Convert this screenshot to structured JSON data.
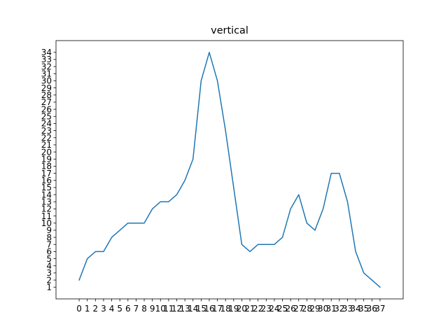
{
  "chart_data": {
    "type": "line",
    "title": "vertical",
    "xlabel": "",
    "ylabel": "",
    "x": [
      0,
      1,
      2,
      3,
      4,
      5,
      6,
      7,
      8,
      9,
      10,
      11,
      12,
      13,
      14,
      15,
      16,
      17,
      18,
      19,
      20,
      21,
      22,
      23,
      24,
      25,
      26,
      27,
      28,
      29,
      30,
      31,
      32,
      33,
      34,
      35,
      36,
      37
    ],
    "y": [
      2,
      5,
      6,
      6,
      8,
      9,
      10,
      10,
      10,
      12,
      13,
      13,
      14,
      16,
      19,
      30,
      34,
      30,
      23,
      15,
      7,
      6,
      7,
      7,
      7,
      8,
      12,
      14,
      10,
      9,
      12,
      17,
      17,
      13,
      6,
      3,
      2,
      1
    ],
    "xlim": [
      -2.85,
      39.85
    ],
    "ylim": [
      -0.65,
      35.65
    ],
    "xticks": [
      0,
      1,
      2,
      3,
      4,
      5,
      6,
      7,
      8,
      9,
      10,
      11,
      12,
      13,
      14,
      15,
      16,
      17,
      18,
      19,
      20,
      21,
      22,
      23,
      24,
      25,
      26,
      27,
      28,
      29,
      30,
      31,
      32,
      33,
      34,
      35,
      36,
      37
    ],
    "yticks": [
      1,
      2,
      3,
      4,
      5,
      6,
      7,
      8,
      9,
      10,
      11,
      12,
      13,
      14,
      15,
      16,
      17,
      18,
      19,
      20,
      21,
      22,
      23,
      24,
      25,
      26,
      27,
      28,
      29,
      30,
      31,
      32,
      33,
      34
    ],
    "line_color": "#1f77b4",
    "grid": false,
    "legend": "none"
  }
}
